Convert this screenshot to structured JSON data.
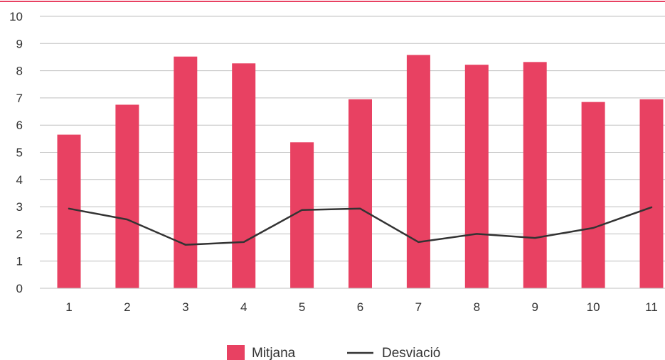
{
  "chart_data": {
    "type": "bar",
    "categories": [
      "1",
      "2",
      "3",
      "4",
      "5",
      "6",
      "7",
      "8",
      "9",
      "10",
      "11"
    ],
    "series": [
      {
        "name": "Mitjana",
        "type": "bar",
        "color": "#e84162",
        "values": [
          5.65,
          6.75,
          8.52,
          8.27,
          5.37,
          6.95,
          8.58,
          8.22,
          8.32,
          6.85,
          6.95
        ]
      },
      {
        "name": "Desviació",
        "type": "line",
        "color": "#333333",
        "values": [
          2.93,
          2.53,
          1.6,
          1.7,
          2.88,
          2.93,
          1.7,
          2.0,
          1.85,
          2.22,
          2.98
        ]
      }
    ],
    "yticks": [
      "0",
      "1",
      "2",
      "3",
      "4",
      "5",
      "6",
      "7",
      "8",
      "9",
      "10"
    ],
    "ylim": [
      0,
      10
    ],
    "grid": true,
    "legend_position": "bottom",
    "accent_color": "#e84162"
  }
}
